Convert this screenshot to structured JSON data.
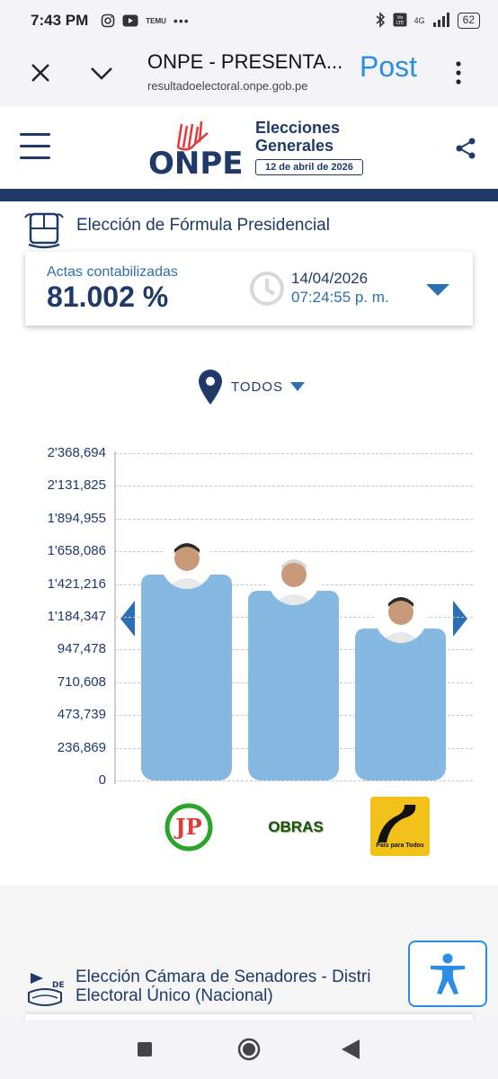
{
  "status_bar": {
    "time": "7:43 PM",
    "temu": "TEMU",
    "dots": "•••",
    "signal": "4G",
    "battery": "62"
  },
  "browser": {
    "title": "ONPE - PRESENTA...",
    "url": "resultadoelectoral.onpe.gob.pe",
    "post_label": "Post"
  },
  "header": {
    "logo": "ONPE",
    "title_line1": "Elecciones",
    "title_line2": "Generales",
    "date_badge": "12 de abril de 2026"
  },
  "section1": {
    "title": "Elección de Fórmula Presidencial"
  },
  "summary_card": {
    "actas_label": "Actas contabilizadas",
    "actas_value": "81.002 %",
    "date": "14/04/2026",
    "time": "07:24:55 p. m."
  },
  "filter": {
    "label": "TODOS"
  },
  "chart_data": {
    "type": "bar",
    "categories": [
      "JP",
      "OBRAS",
      "País para Todos"
    ],
    "values": [
      1490000,
      1375000,
      1100000
    ],
    "ylim": [
      0,
      2368694
    ],
    "ticks": [
      "2'368,694",
      "2'131,825",
      "1'894,955",
      "1'658,086",
      "1'421,216",
      "1'184,347",
      "947,478",
      "710,608",
      "473,739",
      "236,869",
      "0"
    ],
    "tick_values": [
      2368694,
      2131825,
      1894955,
      1658086,
      1421216,
      1184347,
      947478,
      710608,
      473739,
      236869,
      0
    ],
    "grid": true,
    "bar_color": "#86b9e2"
  },
  "parties": {
    "jp": "JP",
    "obras": "OBRAS",
    "ppt": "País para Todos"
  },
  "section2": {
    "title_line1": "Elección Cámara de Senadores - Distri",
    "title_line2": "Electoral Único (Nacional)",
    "icon_label": "DEU"
  }
}
